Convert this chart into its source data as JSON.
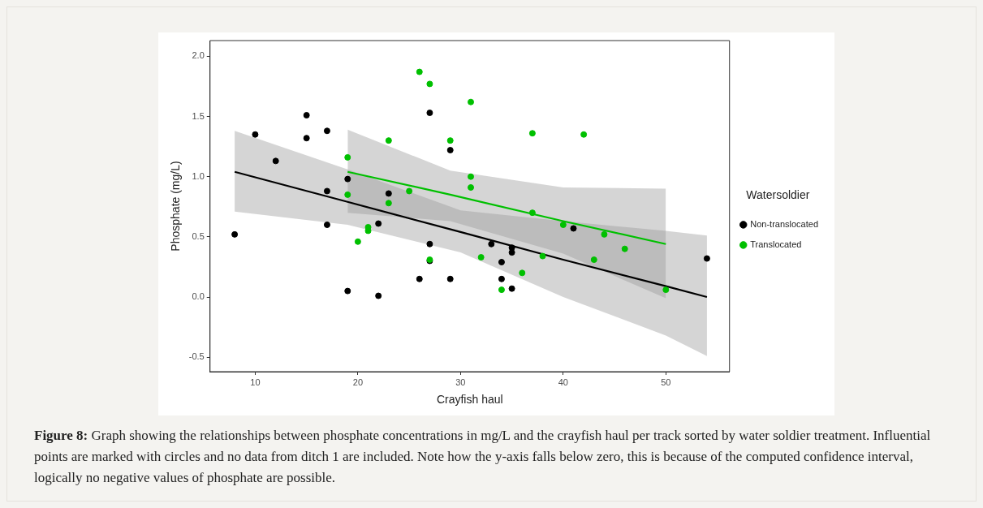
{
  "chart_data": {
    "type": "scatter",
    "xlabel": "Crayfish haul",
    "ylabel": "Phosphate (mg/L)",
    "legend_title": "Watersoldier",
    "legend": "right",
    "grid": false,
    "marker": "circle",
    "xlim": [
      5.6,
      56.2
    ],
    "xticks": [
      10,
      20,
      30,
      40,
      50
    ],
    "ylim": [
      -0.62,
      2.13
    ],
    "yticks": [
      {
        "value": -0.5,
        "label": "-0.5"
      },
      {
        "value": 0,
        "label": "0.0"
      },
      {
        "value": 0.5,
        "label": "0.5"
      },
      {
        "value": 1,
        "label": "1.0"
      },
      {
        "value": 1.5,
        "label": "1.5"
      },
      {
        "value": 2,
        "label": "2.0"
      }
    ],
    "series": [
      {
        "name": "Non-translocated",
        "color": "#000000",
        "x": [
          8,
          10,
          12,
          15,
          15,
          17,
          17,
          17,
          19,
          19,
          22,
          22,
          23,
          26,
          27,
          27,
          27,
          29,
          29,
          33,
          34,
          34,
          35,
          35,
          35,
          41,
          54
        ],
        "values": [
          0.52,
          1.35,
          1.13,
          1.51,
          1.32,
          1.38,
          0.88,
          0.6,
          0.98,
          0.05,
          0.61,
          0.01,
          0.86,
          0.15,
          1.53,
          0.44,
          0.3,
          1.22,
          0.15,
          0.44,
          0.29,
          0.15,
          0.41,
          0.37,
          0.07,
          0.57,
          0.32
        ]
      },
      {
        "name": "Translocated",
        "color": "#00c000",
        "x": [
          19,
          19,
          20,
          21,
          21,
          23,
          23,
          25,
          26,
          27,
          27,
          29,
          31,
          31,
          31,
          32,
          34,
          36,
          37,
          37,
          38,
          40,
          42,
          43,
          44,
          46,
          50
        ],
        "values": [
          1.16,
          0.85,
          0.46,
          0.58,
          0.55,
          1.3,
          0.78,
          0.88,
          1.87,
          1.77,
          0.31,
          1.3,
          1.62,
          1.0,
          0.91,
          0.33,
          0.06,
          0.2,
          1.36,
          0.7,
          0.34,
          0.6,
          1.35,
          0.31,
          0.52,
          0.4,
          0.06
        ]
      },
      {
        "type": "line",
        "marker": "none",
        "color": "#000000",
        "x": [
          8,
          19,
          30,
          40,
          50,
          54
        ],
        "values": [
          1.04,
          0.79,
          0.54,
          0.31,
          0.09,
          0.0
        ],
        "lower": [
          0.71,
          0.6,
          0.37,
          0.0,
          -0.32,
          -0.49
        ],
        "upper": [
          1.38,
          1.06,
          0.72,
          0.63,
          0.55,
          0.51
        ]
      },
      {
        "type": "line",
        "marker": "none",
        "color": "#00c000",
        "x": [
          19,
          29,
          40,
          50
        ],
        "values": [
          1.04,
          0.85,
          0.63,
          0.44
        ],
        "lower": [
          0.7,
          0.63,
          0.36,
          -0.01
        ],
        "upper": [
          1.39,
          1.05,
          0.91,
          0.9
        ]
      }
    ],
    "annotations": [
      "Figure 8: Graph showing the relationships between phosphate concentrations in mg/L and the crayfish haul per track sorted by water soldier treatment. Influential points are marked with circles and no data from ditch 1 are included. Note how the y-axis falls below zero, this is because of the computed confidence interval, logically no negative values of phosphate are possible."
    ]
  }
}
